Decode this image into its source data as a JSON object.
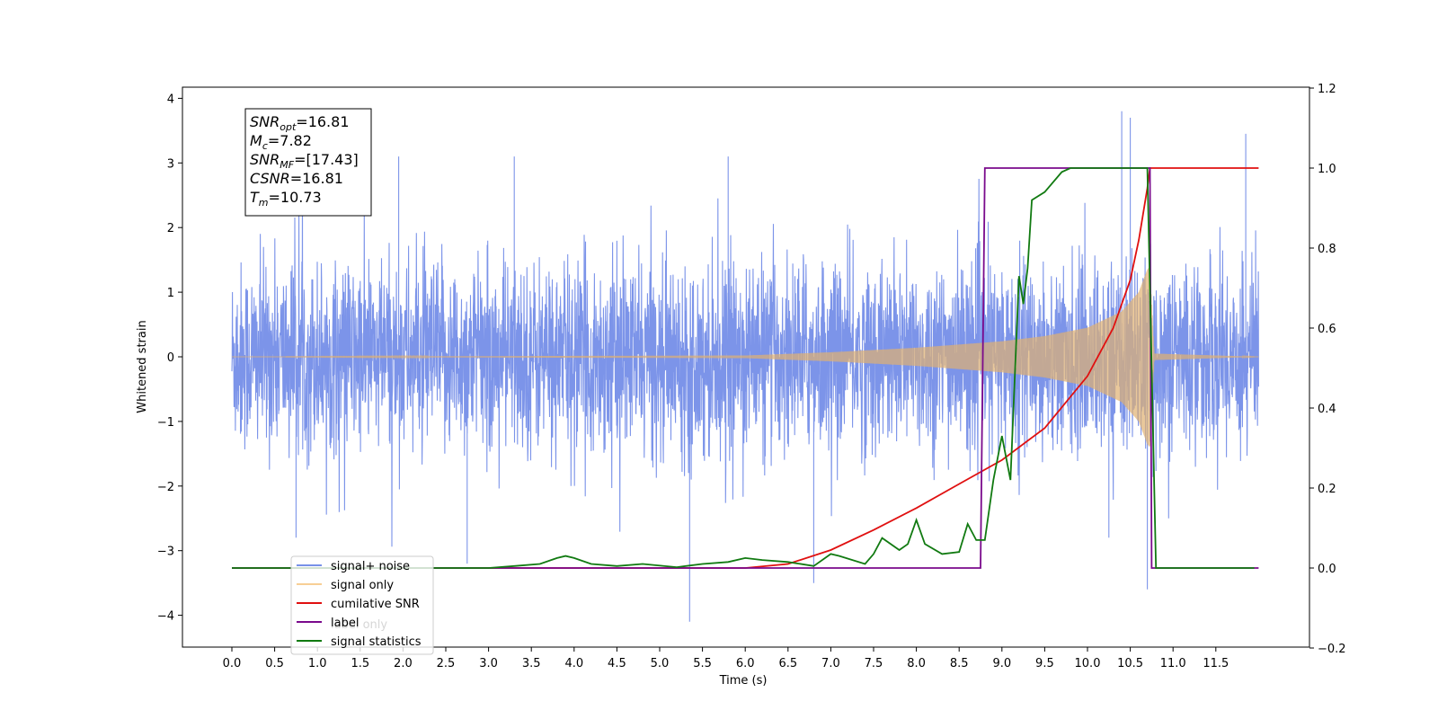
{
  "chart_data": {
    "type": "line",
    "xlabel": "Time (s)",
    "ylabel_left": "Whitened strain",
    "ylabel_right": "",
    "xlim": [
      -0.6,
      12.5
    ],
    "ylim_left": [
      -4.5,
      4.2
    ],
    "ylim_right": [
      -0.2,
      1.2
    ],
    "x_ticks": [
      "0.0",
      "0.5",
      "1.0",
      "1.5",
      "2.0",
      "2.5",
      "3.0",
      "3.5",
      "4.0",
      "4.5",
      "5.0",
      "5.5",
      "6.0",
      "6.5",
      "7.0",
      "7.5",
      "8.0",
      "8.5",
      "9.0",
      "9.5",
      "10.0",
      "10.5",
      "11.0",
      "11.5"
    ],
    "y_ticks_left": [
      "4",
      "3",
      "2",
      "1",
      "0",
      "−1",
      "−2",
      "−3",
      "−4"
    ],
    "y_ticks_right": [
      "1.2",
      "1.0",
      "0.8",
      "0.6",
      "0.4",
      "0.2",
      "0.0",
      "−0.2"
    ],
    "grid": false,
    "legend_position": "lower-left",
    "legend": [
      "signal+ noise",
      "signal only",
      "cumilative SNR",
      "label",
      "signal statistics"
    ],
    "legend_overlap_text": "label only",
    "info_box": {
      "lines": [
        {
          "base": "SNR",
          "sub": "opt",
          "value": "=16.81"
        },
        {
          "base": "M",
          "sub": "c",
          "value": "=7.82"
        },
        {
          "base": "SNR",
          "sub": "MF",
          "value": "=[17.43]"
        },
        {
          "base": "CSNR",
          "sub": "",
          "value": "=16.81"
        },
        {
          "base": "T",
          "sub": "m",
          "value": "=10.73"
        }
      ]
    },
    "series": [
      {
        "name": "signal+ noise",
        "axis": "left",
        "color": "#7891e8",
        "x_range": [
          0.0,
          12.0
        ],
        "envelope": {
          "typical": [
            -1.6,
            1.6
          ],
          "peaks": [
            -4.1,
            3.8
          ]
        },
        "spikes": [
          {
            "x": 1.95,
            "y": 3.1
          },
          {
            "x": 3.3,
            "y": 3.1
          },
          {
            "x": 5.35,
            "y": -4.1
          },
          {
            "x": 5.8,
            "y": 3.1
          },
          {
            "x": 6.8,
            "y": -3.5
          },
          {
            "x": 10.25,
            "y": -2.8
          },
          {
            "x": 10.4,
            "y": 3.8
          },
          {
            "x": 10.5,
            "y": 3.7
          },
          {
            "x": 10.7,
            "y": -3.6
          },
          {
            "x": 11.85,
            "y": 3.45
          },
          {
            "x": 2.75,
            "y": -3.2
          },
          {
            "x": 0.75,
            "y": -2.8
          }
        ]
      },
      {
        "name": "signal only",
        "axis": "left",
        "color": "#f5c27a",
        "x_range": [
          0.0,
          12.0
        ],
        "chirp_amplitude": [
          {
            "x": 0.0,
            "y": 0.0
          },
          {
            "x": 6.0,
            "y": 0.02
          },
          {
            "x": 7.0,
            "y": 0.07
          },
          {
            "x": 8.0,
            "y": 0.14
          },
          {
            "x": 9.0,
            "y": 0.24
          },
          {
            "x": 9.5,
            "y": 0.32
          },
          {
            "x": 10.0,
            "y": 0.45
          },
          {
            "x": 10.4,
            "y": 0.7
          },
          {
            "x": 10.6,
            "y": 1.0
          },
          {
            "x": 10.7,
            "y": 1.35
          },
          {
            "x": 10.73,
            "y": 1.4
          },
          {
            "x": 10.78,
            "y": 0.05
          },
          {
            "x": 12.0,
            "y": 0.0
          }
        ]
      },
      {
        "name": "cumilative SNR",
        "axis": "right",
        "color": "#e01010",
        "points": [
          {
            "x": 0.0,
            "y": 0.0
          },
          {
            "x": 6.0,
            "y": 0.0
          },
          {
            "x": 6.5,
            "y": 0.01
          },
          {
            "x": 7.0,
            "y": 0.045
          },
          {
            "x": 7.5,
            "y": 0.095
          },
          {
            "x": 8.0,
            "y": 0.15
          },
          {
            "x": 8.5,
            "y": 0.21
          },
          {
            "x": 9.0,
            "y": 0.27
          },
          {
            "x": 9.5,
            "y": 0.35
          },
          {
            "x": 10.0,
            "y": 0.48
          },
          {
            "x": 10.3,
            "y": 0.6
          },
          {
            "x": 10.5,
            "y": 0.72
          },
          {
            "x": 10.6,
            "y": 0.82
          },
          {
            "x": 10.7,
            "y": 0.95
          },
          {
            "x": 10.73,
            "y": 1.0
          },
          {
            "x": 12.0,
            "y": 1.0
          }
        ]
      },
      {
        "name": "label",
        "axis": "right",
        "color": "#7a0a8c",
        "points": [
          {
            "x": 0.0,
            "y": 0.0
          },
          {
            "x": 8.75,
            "y": 0.0
          },
          {
            "x": 8.8,
            "y": 1.0
          },
          {
            "x": 10.73,
            "y": 1.0
          },
          {
            "x": 10.75,
            "y": 0.0
          },
          {
            "x": 12.0,
            "y": 0.0
          }
        ]
      },
      {
        "name": "signal statistics",
        "axis": "right",
        "color": "#117a11",
        "points": [
          {
            "x": 0.0,
            "y": 0.0
          },
          {
            "x": 3.0,
            "y": 0.0
          },
          {
            "x": 3.3,
            "y": 0.005
          },
          {
            "x": 3.6,
            "y": 0.01
          },
          {
            "x": 3.8,
            "y": 0.025
          },
          {
            "x": 3.9,
            "y": 0.03
          },
          {
            "x": 4.0,
            "y": 0.025
          },
          {
            "x": 4.2,
            "y": 0.01
          },
          {
            "x": 4.5,
            "y": 0.005
          },
          {
            "x": 4.8,
            "y": 0.01
          },
          {
            "x": 5.2,
            "y": 0.002
          },
          {
            "x": 5.5,
            "y": 0.01
          },
          {
            "x": 5.8,
            "y": 0.015
          },
          {
            "x": 6.0,
            "y": 0.025
          },
          {
            "x": 6.2,
            "y": 0.02
          },
          {
            "x": 6.5,
            "y": 0.015
          },
          {
            "x": 6.8,
            "y": 0.005
          },
          {
            "x": 7.0,
            "y": 0.035
          },
          {
            "x": 7.1,
            "y": 0.03
          },
          {
            "x": 7.4,
            "y": 0.01
          },
          {
            "x": 7.5,
            "y": 0.035
          },
          {
            "x": 7.6,
            "y": 0.075
          },
          {
            "x": 7.8,
            "y": 0.045
          },
          {
            "x": 7.9,
            "y": 0.06
          },
          {
            "x": 8.0,
            "y": 0.12
          },
          {
            "x": 8.1,
            "y": 0.06
          },
          {
            "x": 8.3,
            "y": 0.035
          },
          {
            "x": 8.5,
            "y": 0.04
          },
          {
            "x": 8.6,
            "y": 0.11
          },
          {
            "x": 8.7,
            "y": 0.07
          },
          {
            "x": 8.8,
            "y": 0.07
          },
          {
            "x": 8.9,
            "y": 0.22
          },
          {
            "x": 9.0,
            "y": 0.33
          },
          {
            "x": 9.1,
            "y": 0.22
          },
          {
            "x": 9.2,
            "y": 0.73
          },
          {
            "x": 9.25,
            "y": 0.66
          },
          {
            "x": 9.3,
            "y": 0.75
          },
          {
            "x": 9.35,
            "y": 0.92
          },
          {
            "x": 9.5,
            "y": 0.94
          },
          {
            "x": 9.7,
            "y": 0.99
          },
          {
            "x": 9.8,
            "y": 1.0
          },
          {
            "x": 10.6,
            "y": 1.0
          },
          {
            "x": 10.7,
            "y": 1.0
          },
          {
            "x": 10.8,
            "y": 0.0
          },
          {
            "x": 11.95,
            "y": 0.0
          }
        ]
      }
    ]
  }
}
